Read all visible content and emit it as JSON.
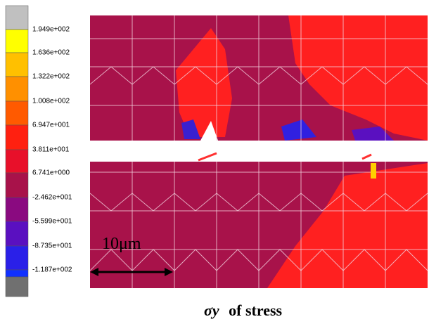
{
  "legend": {
    "labels": [
      "1.949e+002",
      "1.636e+002",
      "1.322e+002",
      "1.008e+002",
      "6.947e+001",
      "3.811e+001",
      "6.741e+000",
      "-2.462e+001",
      "-5.599e+001",
      "-8.735e+001",
      "-1.187e+002"
    ]
  },
  "scale_bar": {
    "label": "10μm"
  },
  "caption": {
    "symbol": "σy",
    "text": "of stress"
  }
}
